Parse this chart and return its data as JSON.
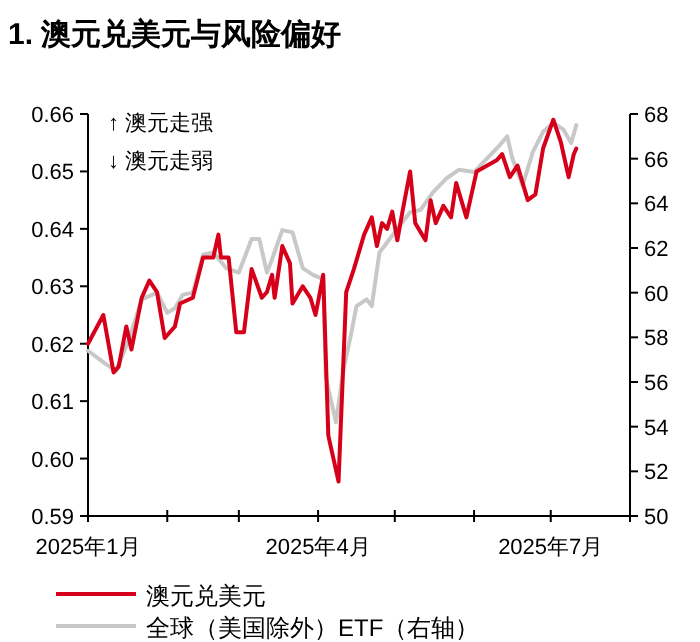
{
  "chart_data": {
    "type": "line",
    "title": "1. 澳元兑美元与风险偏好",
    "annotations": [
      "↑ 澳元走强",
      "↓ 澳元走弱"
    ],
    "legend": "bottom",
    "grid": false,
    "marker": "none",
    "line_style": "solid",
    "xlim": [
      "2025-01-01",
      "2025-08-01"
    ],
    "xticks": [
      {
        "value": "2025-01-01",
        "label": "2025年1月"
      },
      {
        "value": "2025-02-01",
        "label": null
      },
      {
        "value": "2025-03-01",
        "label": null
      },
      {
        "value": "2025-04-01",
        "label": "2025年4月"
      },
      {
        "value": "2025-05-01",
        "label": null
      },
      {
        "value": "2025-06-01",
        "label": null
      },
      {
        "value": "2025-07-01",
        "label": "2025年7月"
      },
      {
        "value": "2025-08-01",
        "label": null
      }
    ],
    "ylim": [
      0.59,
      0.66
    ],
    "yticks": [
      0.59,
      {
        "value": 0.6,
        "label": "0.60"
      },
      0.61,
      0.62,
      0.63,
      0.64,
      0.65,
      0.66
    ],
    "y2lim": [
      50,
      68
    ],
    "y2ticks": [
      50,
      52,
      54,
      56,
      58,
      60,
      62,
      64,
      66,
      68
    ],
    "series": [
      {
        "name": "全球（美国除外）ETF（右轴）",
        "color": "#c8c8c8",
        "axis": "y2",
        "x": [
          "2025-01-01",
          "2025-01-08",
          "2025-01-12",
          "2025-01-17",
          "2025-01-22",
          "2025-01-28",
          "2025-02-01",
          "2025-02-04",
          "2025-02-07",
          "2025-02-11",
          "2025-02-15",
          "2025-02-19",
          "2025-02-24",
          "2025-03-01",
          "2025-03-06",
          "2025-03-09",
          "2025-03-12",
          "2025-03-14",
          "2025-03-18",
          "2025-03-22",
          "2025-03-26",
          "2025-03-30",
          "2025-04-03",
          "2025-04-04",
          "2025-04-08",
          "2025-04-11",
          "2025-04-14",
          "2025-04-16",
          "2025-04-20",
          "2025-04-22",
          "2025-04-25",
          "2025-04-29",
          "2025-05-03",
          "2025-05-07",
          "2025-05-11",
          "2025-05-16",
          "2025-05-21",
          "2025-05-26",
          "2025-06-01",
          "2025-06-06",
          "2025-06-11",
          "2025-06-14",
          "2025-06-16",
          "2025-06-20",
          "2025-06-24",
          "2025-06-28",
          "2025-07-02",
          "2025-07-06",
          "2025-07-09",
          "2025-07-11"
        ],
        "values": [
          57.4,
          56.8,
          56.5,
          57.9,
          59.7,
          60.0,
          59.1,
          59.3,
          59.9,
          60.0,
          61.7,
          61.8,
          61.1,
          60.9,
          62.4,
          62.4,
          60.9,
          61.5,
          62.8,
          62.7,
          61.1,
          60.8,
          60.6,
          56.2,
          54.2,
          56.6,
          58.2,
          59.4,
          59.7,
          59.4,
          61.8,
          62.4,
          63.0,
          63.6,
          63.7,
          64.5,
          65.1,
          65.5,
          65.4,
          66.0,
          66.6,
          67.0,
          66.0,
          64.8,
          66.3,
          67.2,
          67.6,
          67.3,
          66.7,
          67.5
        ]
      },
      {
        "name": "澳元兑美元",
        "color": "#d7001a",
        "x": [
          "2025-01-01",
          "2025-01-07",
          "2025-01-11",
          "2025-01-13",
          "2025-01-16",
          "2025-01-18",
          "2025-01-22",
          "2025-01-25",
          "2025-01-28",
          "2025-01-31",
          "2025-02-04",
          "2025-02-06",
          "2025-02-11",
          "2025-02-15",
          "2025-02-19",
          "2025-02-21",
          "2025-02-22",
          "2025-02-25",
          "2025-02-28",
          "2025-03-03",
          "2025-03-06",
          "2025-03-10",
          "2025-03-12",
          "2025-03-14",
          "2025-03-15",
          "2025-03-18",
          "2025-03-21",
          "2025-03-22",
          "2025-03-26",
          "2025-03-29",
          "2025-03-31",
          "2025-04-03",
          "2025-04-05",
          "2025-04-09",
          "2025-04-12",
          "2025-04-15",
          "2025-04-19",
          "2025-04-22",
          "2025-04-24",
          "2025-04-26",
          "2025-04-28",
          "2025-04-30",
          "2025-05-02",
          "2025-05-04",
          "2025-05-07",
          "2025-05-09",
          "2025-05-13",
          "2025-05-15",
          "2025-05-17",
          "2025-05-20",
          "2025-05-23",
          "2025-05-25",
          "2025-05-29",
          "2025-06-02",
          "2025-06-06",
          "2025-06-10",
          "2025-06-12",
          "2025-06-15",
          "2025-06-18",
          "2025-06-22",
          "2025-06-25",
          "2025-06-28",
          "2025-07-02",
          "2025-07-05",
          "2025-07-08",
          "2025-07-10",
          "2025-07-11"
        ],
        "values": [
          0.62,
          0.625,
          0.615,
          0.616,
          0.623,
          0.619,
          0.628,
          0.631,
          0.629,
          0.621,
          0.623,
          0.627,
          0.628,
          0.635,
          0.635,
          0.639,
          0.635,
          0.635,
          0.622,
          0.622,
          0.633,
          0.628,
          0.629,
          0.632,
          0.628,
          0.637,
          0.634,
          0.627,
          0.63,
          0.628,
          0.625,
          0.632,
          0.604,
          0.596,
          0.629,
          0.633,
          0.639,
          0.642,
          0.637,
          0.641,
          0.64,
          0.643,
          0.638,
          0.643,
          0.65,
          0.641,
          0.638,
          0.645,
          0.641,
          0.644,
          0.642,
          0.648,
          0.642,
          0.65,
          0.651,
          0.652,
          0.653,
          0.649,
          0.651,
          0.645,
          0.646,
          0.654,
          0.659,
          0.655,
          0.649,
          0.653,
          0.654
        ]
      }
    ]
  }
}
